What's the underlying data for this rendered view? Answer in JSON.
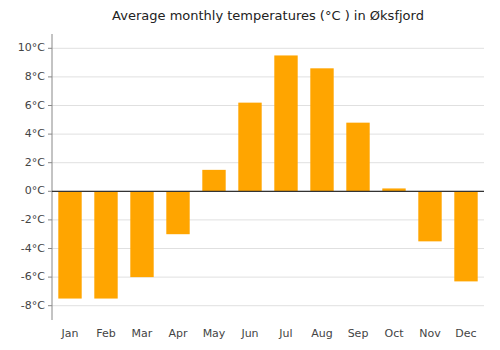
{
  "chart_data": {
    "type": "bar",
    "title": "Average monthly temperatures (°C ) in Øksfjord",
    "categories": [
      "Jan",
      "Feb",
      "Mar",
      "Apr",
      "May",
      "Jun",
      "Jul",
      "Aug",
      "Sep",
      "Oct",
      "Nov",
      "Dec"
    ],
    "values": [
      -7.5,
      -7.5,
      -6.0,
      -3.0,
      1.5,
      6.2,
      9.5,
      8.6,
      4.8,
      0.2,
      -3.5,
      -6.3
    ],
    "color": "#FFA500",
    "ylim": [
      -9,
      11
    ],
    "yticks": [
      {
        "value": 10,
        "label": "10°C"
      },
      {
        "value": 8,
        "label": "8°C"
      },
      {
        "value": 6,
        "label": "6°C"
      },
      {
        "value": 4,
        "label": "4°C"
      },
      {
        "value": 2,
        "label": "2°C"
      },
      {
        "value": 0,
        "label": "0°C"
      },
      {
        "value": -2,
        "label": "-2°C"
      },
      {
        "value": -4,
        "label": "-4°C"
      },
      {
        "value": -6,
        "label": "-6°C"
      },
      {
        "value": -8,
        "label": "-8°C"
      }
    ],
    "grid": true
  }
}
